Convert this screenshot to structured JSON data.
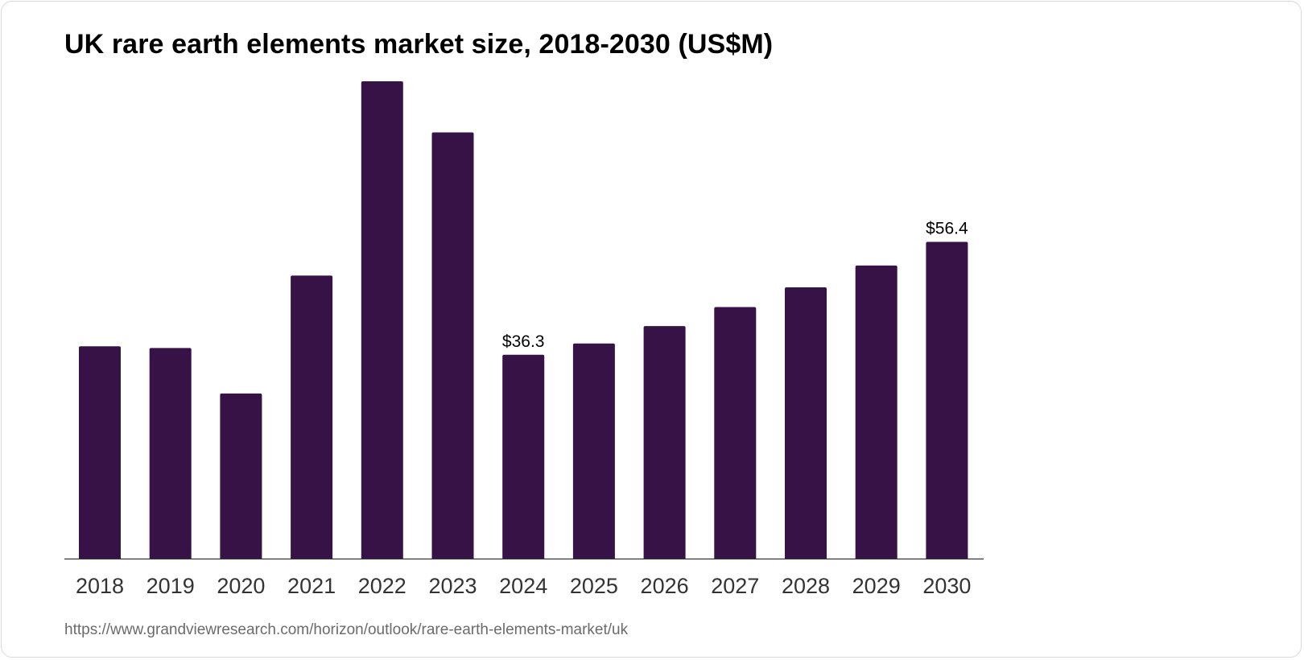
{
  "chart_data": {
    "type": "bar",
    "title": "UK rare earth elements market size, 2018-2030 (US$M)",
    "xlabel": "",
    "ylabel": "",
    "categories": [
      "2018",
      "2019",
      "2020",
      "2021",
      "2022",
      "2023",
      "2024",
      "2025",
      "2026",
      "2027",
      "2028",
      "2029",
      "2030"
    ],
    "values": [
      37.8,
      37.5,
      29.4,
      50.4,
      85.0,
      75.9,
      36.3,
      38.3,
      41.4,
      44.8,
      48.3,
      52.2,
      56.4
    ],
    "data_labels": [
      {
        "category": "2024",
        "text": "$36.3"
      },
      {
        "category": "2030",
        "text": "$56.4"
      }
    ],
    "ylim": [
      0,
      85
    ],
    "grid": false,
    "legend": "none",
    "bar_color": "#371246"
  },
  "source": "https://www.grandviewresearch.com/horizon/outlook/rare-earth-elements-market/uk"
}
